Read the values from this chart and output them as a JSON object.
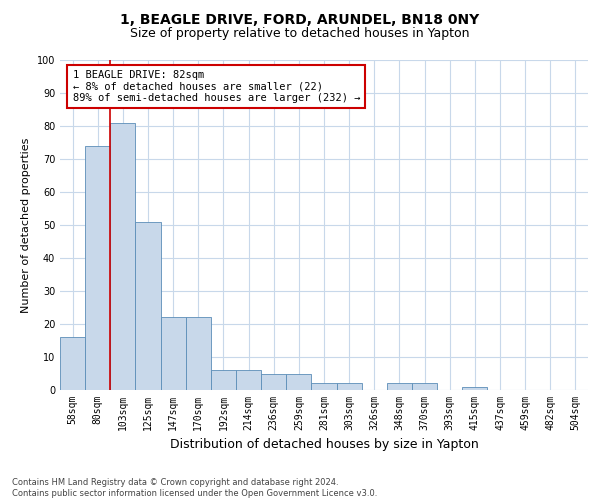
{
  "title_line1": "1, BEAGLE DRIVE, FORD, ARUNDEL, BN18 0NY",
  "title_line2": "Size of property relative to detached houses in Yapton",
  "xlabel": "Distribution of detached houses by size in Yapton",
  "ylabel": "Number of detached properties",
  "footnote": "Contains HM Land Registry data © Crown copyright and database right 2024.\nContains public sector information licensed under the Open Government Licence v3.0.",
  "bar_labels": [
    "58sqm",
    "80sqm",
    "103sqm",
    "125sqm",
    "147sqm",
    "170sqm",
    "192sqm",
    "214sqm",
    "236sqm",
    "259sqm",
    "281sqm",
    "303sqm",
    "326sqm",
    "348sqm",
    "370sqm",
    "393sqm",
    "415sqm",
    "437sqm",
    "459sqm",
    "482sqm",
    "504sqm"
  ],
  "bar_values": [
    16,
    74,
    81,
    51,
    22,
    22,
    6,
    6,
    5,
    5,
    2,
    2,
    0,
    2,
    2,
    0,
    1,
    0,
    0,
    0,
    0
  ],
  "bar_color": "#c8d8ea",
  "bar_edge_color": "#5b8db8",
  "highlight_color": "#cc0000",
  "annotation_text": "1 BEAGLE DRIVE: 82sqm\n← 8% of detached houses are smaller (22)\n89% of semi-detached houses are larger (232) →",
  "annotation_box_color": "#cc0000",
  "ylim": [
    0,
    100
  ],
  "yticks": [
    0,
    10,
    20,
    30,
    40,
    50,
    60,
    70,
    80,
    90,
    100
  ],
  "bg_color": "#ffffff",
  "grid_color": "#c8d8ea",
  "title_fontsize": 10,
  "subtitle_fontsize": 9,
  "tick_fontsize": 7,
  "ylabel_fontsize": 8,
  "xlabel_fontsize": 9,
  "annot_fontsize": 7.5
}
